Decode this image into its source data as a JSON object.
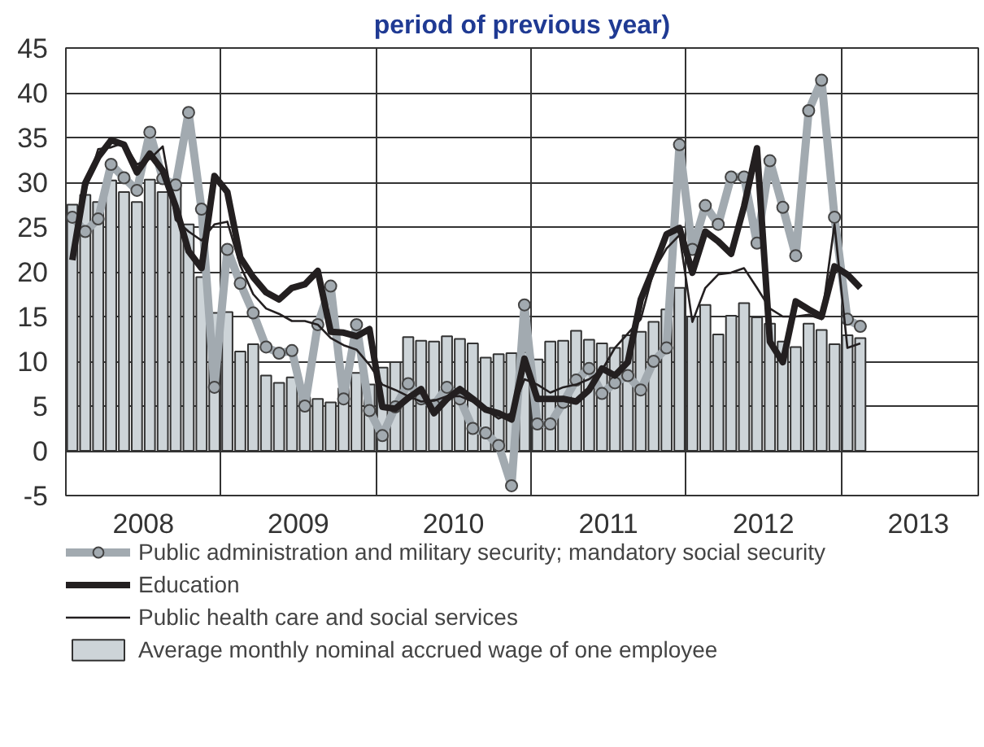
{
  "chart_data": {
    "type": "line",
    "title": "period of previous year)",
    "x": [
      "2008-01-16",
      "2008-02-16",
      "2008-03-16",
      "2008-04-16",
      "2008-05-16",
      "2008-06-16",
      "2008-07-16",
      "2008-08-16",
      "2008-09-16",
      "2008-10-16",
      "2008-11-16",
      "2008-12-16",
      "2009-01-16",
      "2009-02-16",
      "2009-03-16",
      "2009-04-16",
      "2009-05-16",
      "2009-06-16",
      "2009-07-16",
      "2009-08-16",
      "2009-09-16",
      "2009-10-16",
      "2009-11-16",
      "2009-12-16",
      "2010-01-16",
      "2010-02-16",
      "2010-03-16",
      "2010-04-16",
      "2010-05-16",
      "2010-06-16",
      "2010-07-16",
      "2010-08-16",
      "2010-09-16",
      "2010-10-16",
      "2010-11-16",
      "2010-12-16",
      "2011-01-16",
      "2011-02-16",
      "2011-03-16",
      "2011-04-16",
      "2011-05-16",
      "2011-06-16",
      "2011-07-16",
      "2011-08-16",
      "2011-09-16",
      "2011-10-16",
      "2011-11-16",
      "2011-12-16",
      "2012-01-16",
      "2012-02-16",
      "2012-03-16",
      "2012-04-16",
      "2012-05-16",
      "2012-06-16",
      "2012-07-16",
      "2012-08-16",
      "2012-09-16",
      "2012-10-16",
      "2012-11-16",
      "2012-12-16",
      "2013-01-16",
      "2013-02-16"
    ],
    "series": [
      {
        "name": "Average monthly nominal accrued wage of one employee",
        "type": "bar",
        "color": "#cdd4d8",
        "values": [
          27.5,
          28.6,
          27.8,
          30.2,
          28.9,
          27.8,
          30.3,
          28.9,
          29.5,
          25.3,
          19.4,
          15.4,
          15.5,
          11.1,
          11.9,
          8.4,
          7.6,
          8.2,
          6.0,
          5.8,
          5.4,
          7.0,
          8.7,
          7.4,
          9.3,
          9.9,
          12.7,
          12.3,
          12.2,
          12.8,
          12.5,
          12.0,
          10.4,
          10.8,
          10.9,
          11.0,
          10.2,
          12.2,
          12.3,
          13.4,
          12.4,
          12.0,
          11.5,
          12.9,
          13.3,
          14.4,
          15.8,
          18.2,
          15.0,
          16.3,
          13.0,
          15.1,
          16.5,
          14.9,
          14.2,
          12.2,
          11.6,
          14.2,
          13.5,
          11.9,
          12.9,
          12.6
        ]
      },
      {
        "name": "Public administration and military security; mandatory social security",
        "marker": "circle",
        "color": "#a2aab0",
        "values": [
          26.1,
          24.5,
          25.9,
          32.0,
          30.5,
          29.1,
          35.6,
          30.4,
          29.7,
          37.8,
          27.0,
          7.1,
          22.5,
          18.7,
          15.4,
          11.6,
          10.9,
          11.2,
          5.0,
          14.1,
          18.4,
          5.8,
          14.1,
          4.5,
          1.7,
          4.9,
          7.5,
          5.8,
          5.1,
          7.1,
          5.8,
          2.5,
          2.0,
          0.6,
          -3.9,
          16.3,
          3.0,
          3.0,
          5.4,
          7.9,
          9.2,
          6.4,
          7.6,
          8.4,
          6.8,
          10.0,
          11.5,
          34.2,
          22.5,
          27.4,
          25.3,
          30.6,
          30.6,
          23.2,
          32.4,
          27.2,
          21.8,
          38.0,
          41.4,
          26.1,
          14.7,
          13.9
        ]
      },
      {
        "name": "Education",
        "color": "#231f20",
        "values": [
          21.3,
          29.9,
          32.8,
          34.7,
          34.2,
          31.1,
          33.2,
          31.3,
          27.3,
          22.3,
          20.4,
          30.7,
          28.9,
          21.6,
          19.4,
          17.7,
          16.9,
          18.2,
          18.6,
          20.1,
          13.3,
          13.2,
          12.8,
          13.6,
          4.9,
          4.7,
          5.9,
          6.9,
          4.2,
          5.8,
          6.9,
          5.8,
          4.6,
          4.2,
          3.5,
          10.3,
          5.8,
          5.8,
          5.8,
          5.5,
          6.8,
          9.2,
          8.4,
          9.9,
          16.9,
          20.4,
          24.2,
          24.9,
          19.9,
          24.5,
          23.4,
          22.0,
          27.3,
          33.8,
          12.2,
          9.9,
          16.7,
          15.8,
          15.0,
          20.6,
          19.7,
          18.2
        ]
      },
      {
        "name": "Public health care and social services",
        "color": "#231f20",
        "values": [
          22.0,
          29.0,
          33.7,
          33.9,
          34.4,
          32.0,
          32.6,
          34.0,
          25.8,
          24.5,
          23.5,
          25.3,
          25.6,
          20.7,
          17.5,
          15.9,
          15.3,
          14.5,
          14.5,
          14.1,
          12.6,
          11.8,
          11.3,
          9.6,
          7.4,
          6.8,
          6.1,
          5.5,
          5.6,
          6.1,
          6.1,
          5.5,
          4.6,
          3.6,
          4.2,
          8.0,
          7.4,
          6.5,
          7.1,
          7.4,
          8.0,
          9.0,
          11.5,
          13.1,
          14.7,
          20.1,
          22.6,
          24.1,
          14.4,
          18.2,
          19.7,
          19.9,
          20.4,
          18.2,
          15.9,
          15.0,
          15.0,
          15.2,
          14.7,
          25.3,
          11.5,
          12.0
        ]
      }
    ],
    "xlim": [
      "2008-01",
      "2013-11-20"
    ],
    "xticks": [
      {
        "value": "2008-07",
        "label": "2008"
      },
      {
        "value": "2009-01",
        "label": null
      },
      {
        "value": "2009-07",
        "label": "2009"
      },
      {
        "value": "2010-01",
        "label": null
      },
      {
        "value": "2010-07",
        "label": "2010"
      },
      {
        "value": "2011-01",
        "label": null
      },
      {
        "value": "2011-07",
        "label": "2011"
      },
      {
        "value": "2012-01",
        "label": null
      },
      {
        "value": "2012-07",
        "label": "2012"
      },
      {
        "value": "2013-01",
        "label": null
      },
      {
        "value": "2013-07",
        "label": "2013"
      }
    ],
    "ylim": [
      -5,
      45
    ],
    "yticks": [
      -5,
      0,
      5,
      10,
      15,
      20,
      25,
      30,
      35,
      40,
      45
    ],
    "grid": true,
    "legend": "bottom"
  }
}
